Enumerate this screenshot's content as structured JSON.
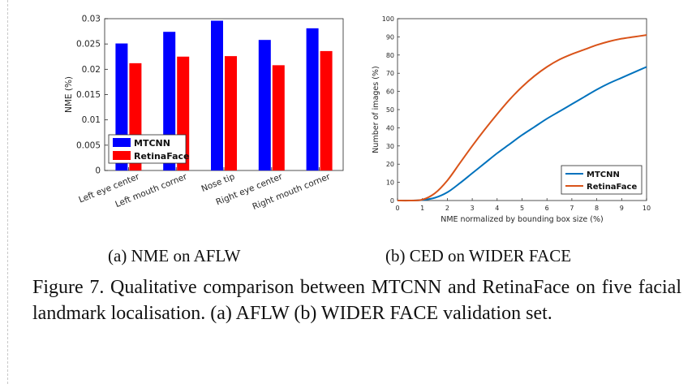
{
  "figure": {
    "sub_a": "(a)  NME on AFLW",
    "sub_b": "(b)  CED on WIDER FACE",
    "caption": "Figure 7. Qualitative comparison between MTCNN and RetinaFace on five facial landmark localisation. (a) AFLW (b) WIDER FACE validation set."
  },
  "chart_data": [
    {
      "type": "bar",
      "categories": [
        "Left eye center",
        "Left mouth corner",
        "Nose tip",
        "Right eye center",
        "Right mouth corner"
      ],
      "series": [
        {
          "name": "MTCNN",
          "color": "#0000ff",
          "values": [
            0.0251,
            0.0274,
            0.0296,
            0.0258,
            0.0281
          ]
        },
        {
          "name": "RetinaFace",
          "color": "#ff0000",
          "values": [
            0.0212,
            0.0225,
            0.0226,
            0.0208,
            0.0236
          ]
        }
      ],
      "ylabel": "NME (%)",
      "ylim": [
        0,
        0.03
      ],
      "yticks": [
        "0",
        "0.005",
        "0.01",
        "0.015",
        "0.02",
        "0.025",
        "0.03"
      ],
      "legend": "bottom-left",
      "grid": false
    },
    {
      "type": "line",
      "x": [
        0,
        0.5,
        1,
        1.5,
        2,
        2.5,
        3,
        3.5,
        4,
        4.5,
        5,
        5.5,
        6,
        6.5,
        7,
        7.5,
        8,
        8.5,
        9,
        9.5,
        10
      ],
      "series": [
        {
          "name": "MTCNN",
          "color": "#0072bd",
          "values": [
            0,
            0,
            0.3,
            1.5,
            4.5,
            9.5,
            15,
            20.5,
            26,
            31,
            36,
            40.5,
            45,
            49,
            53,
            57,
            61,
            64.5,
            67.5,
            70.5,
            73.5
          ]
        },
        {
          "name": "RetinaFace",
          "color": "#d95319",
          "values": [
            0,
            0,
            0.5,
            4,
            11,
            20.5,
            30,
            39,
            47.5,
            55.5,
            62.5,
            68.5,
            73.5,
            77.5,
            80.5,
            83,
            85.5,
            87.5,
            89,
            90,
            91
          ]
        }
      ],
      "xlabel": "NME normalized by bounding box size (%)",
      "ylabel": "Number of images (%)",
      "xlim": [
        0,
        10
      ],
      "ylim": [
        0,
        100
      ],
      "xticks": [
        "0",
        "1",
        "2",
        "3",
        "4",
        "5",
        "6",
        "7",
        "8",
        "9",
        "10"
      ],
      "yticks": [
        "0",
        "10",
        "20",
        "30",
        "40",
        "50",
        "60",
        "70",
        "80",
        "90",
        "100"
      ],
      "legend": "bottom-right",
      "grid": false
    }
  ]
}
